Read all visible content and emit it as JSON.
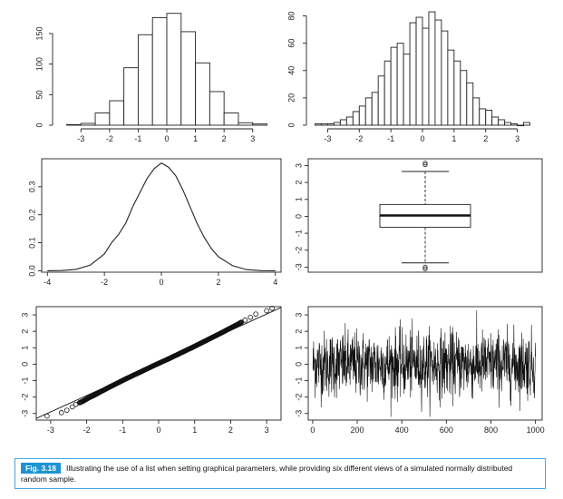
{
  "chart_data": [
    {
      "type": "bar",
      "panel": "top-left",
      "x": [
        -3.25,
        -2.75,
        -2.25,
        -1.75,
        -1.25,
        -0.75,
        -0.25,
        0.25,
        0.75,
        1.25,
        1.75,
        2.25,
        2.75,
        3.25
      ],
      "values": [
        1,
        3,
        20,
        40,
        94,
        148,
        176,
        183,
        153,
        102,
        55,
        20,
        4,
        2
      ],
      "xlim": [
        -3.8,
        3.8
      ],
      "ylim": [
        0,
        190
      ],
      "xticks": [
        -3,
        -2,
        -1,
        0,
        1,
        2,
        3
      ],
      "yticks": [
        0,
        50,
        100,
        150
      ],
      "xtick_labels": [
        "-3",
        "-2",
        "-1",
        "0",
        "1",
        "2",
        "3"
      ],
      "ytick_labels": [
        "0",
        "50",
        "100",
        "150"
      ]
    },
    {
      "type": "bar",
      "panel": "top-right",
      "x": [
        -3.3,
        -3.1,
        -2.9,
        -2.7,
        -2.5,
        -2.3,
        -2.1,
        -1.9,
        -1.7,
        -1.5,
        -1.3,
        -1.1,
        -0.9,
        -0.7,
        -0.5,
        -0.3,
        -0.1,
        0.1,
        0.3,
        0.5,
        0.7,
        0.9,
        1.1,
        1.3,
        1.5,
        1.7,
        1.9,
        2.1,
        2.3,
        2.5,
        2.7,
        2.9,
        3.1,
        3.3
      ],
      "values": [
        1,
        1,
        1,
        2,
        4,
        6,
        10,
        14,
        20,
        24,
        36,
        47,
        57,
        60,
        52,
        75,
        79,
        71,
        83,
        77,
        69,
        55,
        47,
        40,
        31,
        20,
        12,
        11,
        6,
        4,
        2,
        1,
        0,
        2
      ],
      "xlim": [
        -3.5,
        3.5
      ],
      "ylim": [
        0,
        85
      ],
      "xticks": [
        -3,
        -2,
        -1,
        0,
        1,
        2,
        3
      ],
      "yticks": [
        0,
        20,
        40,
        60,
        80
      ],
      "xtick_labels": [
        "-3",
        "-2",
        "-1",
        "0",
        "1",
        "2",
        "3"
      ],
      "ytick_labels": [
        "0",
        "20",
        "40",
        "60",
        "80"
      ]
    },
    {
      "type": "line",
      "panel": "middle-left",
      "x": [
        -4,
        -3.5,
        -3,
        -2.5,
        -2,
        -1.75,
        -1.5,
        -1.25,
        -1,
        -0.75,
        -0.5,
        -0.25,
        0,
        0.25,
        0.5,
        0.75,
        1,
        1.25,
        1.5,
        1.75,
        2,
        2.5,
        3,
        3.5,
        4
      ],
      "values": [
        0.0,
        0.001,
        0.005,
        0.02,
        0.06,
        0.1,
        0.13,
        0.17,
        0.23,
        0.28,
        0.33,
        0.365,
        0.385,
        0.37,
        0.34,
        0.29,
        0.23,
        0.17,
        0.12,
        0.08,
        0.05,
        0.018,
        0.004,
        0.0005,
        0.0
      ],
      "xlim": [
        -4.2,
        4.2
      ],
      "ylim": [
        -0.005,
        0.4
      ],
      "xticks": [
        -4,
        -2,
        0,
        2,
        4
      ],
      "yticks": [
        0.0,
        0.1,
        0.2,
        0.3
      ],
      "xtick_labels": [
        "-4",
        "-2",
        "0",
        "2",
        "4"
      ],
      "ytick_labels": [
        "0.0",
        "0.1",
        "0.2",
        "0.3"
      ]
    },
    {
      "type": "box",
      "panel": "middle-right",
      "min": -2.75,
      "q1": -0.65,
      "median": 0.05,
      "q3": 0.7,
      "max": 2.65,
      "outliers_high": [
        3.05,
        3.15
      ],
      "outliers_low": [
        -3.0,
        -3.1
      ],
      "ylim": [
        -3.3,
        3.4
      ],
      "yticks": [
        -3,
        -2,
        -1,
        0,
        1,
        2,
        3
      ],
      "ytick_labels": [
        "-3",
        "-2",
        "-1",
        "0",
        "1",
        "2",
        "3"
      ]
    },
    {
      "type": "scatter",
      "panel": "bottom-left",
      "x": [
        -3.1,
        -2.7,
        -2.55,
        -2.4,
        -2.3,
        -2.2,
        -2.1,
        -2.0,
        -1.9,
        -1.8,
        -1.7,
        -1.6,
        -1.5,
        -1.4,
        -1.3,
        -1.2,
        -1.1,
        -1.0,
        -0.9,
        -0.8,
        -0.7,
        -0.6,
        -0.5,
        -0.4,
        -0.3,
        -0.2,
        -0.1,
        0.0,
        0.1,
        0.2,
        0.3,
        0.4,
        0.5,
        0.6,
        0.7,
        0.8,
        0.9,
        1.0,
        1.1,
        1.2,
        1.3,
        1.4,
        1.5,
        1.6,
        1.7,
        1.8,
        1.9,
        2.0,
        2.1,
        2.2,
        2.3,
        2.4,
        2.55,
        2.7,
        3.0,
        3.15
      ],
      "values": [
        -3.15,
        -2.95,
        -2.8,
        -2.6,
        -2.45,
        -2.35,
        -2.25,
        -2.12,
        -2.0,
        -1.9,
        -1.78,
        -1.66,
        -1.55,
        -1.43,
        -1.32,
        -1.21,
        -1.1,
        -0.99,
        -0.88,
        -0.78,
        -0.67,
        -0.57,
        -0.47,
        -0.36,
        -0.26,
        -0.15,
        -0.05,
        0.05,
        0.15,
        0.25,
        0.35,
        0.46,
        0.56,
        0.67,
        0.77,
        0.88,
        0.98,
        1.09,
        1.2,
        1.31,
        1.42,
        1.53,
        1.64,
        1.75,
        1.86,
        1.97,
        2.09,
        2.2,
        2.32,
        2.43,
        2.56,
        2.68,
        2.85,
        3.05,
        3.25,
        3.4
      ],
      "line_x": [
        -3.4,
        3.4
      ],
      "line_y": [
        -3.3,
        3.45
      ],
      "xlim": [
        -3.4,
        3.4
      ],
      "ylim": [
        -3.4,
        3.5
      ],
      "xticks": [
        -3,
        -2,
        -1,
        0,
        1,
        2,
        3
      ],
      "yticks": [
        -3,
        -2,
        -1,
        0,
        1,
        2,
        3
      ],
      "xtick_labels": [
        "-3",
        "-2",
        "-1",
        "0",
        "1",
        "2",
        "3"
      ],
      "ytick_labels": [
        "-3",
        "-2",
        "-1",
        "0",
        "1",
        "2",
        "3"
      ]
    },
    {
      "type": "line",
      "panel": "bottom-right",
      "n": 1000,
      "xlim": [
        -20,
        1030
      ],
      "ylim": [
        -3.4,
        3.5
      ],
      "xticks": [
        0,
        200,
        400,
        600,
        800,
        1000
      ],
      "yticks": [
        -3,
        -2,
        -1,
        0,
        1,
        2,
        3
      ],
      "xtick_labels": [
        "0",
        "200",
        "400",
        "600",
        "800",
        "1000"
      ],
      "ytick_labels": [
        "-3",
        "-2",
        "-1",
        "0",
        "1",
        "2",
        "3"
      ]
    }
  ],
  "caption": {
    "tag": "Fig. 3.18",
    "text": "Illustrating the use of a list when setting graphical parameters, while providing six different views of a simulated normally distributed random sample."
  },
  "colors": {
    "caption_border": "#3fa9e0",
    "caption_tag": "#1c93d4",
    "ink": "#111111"
  }
}
